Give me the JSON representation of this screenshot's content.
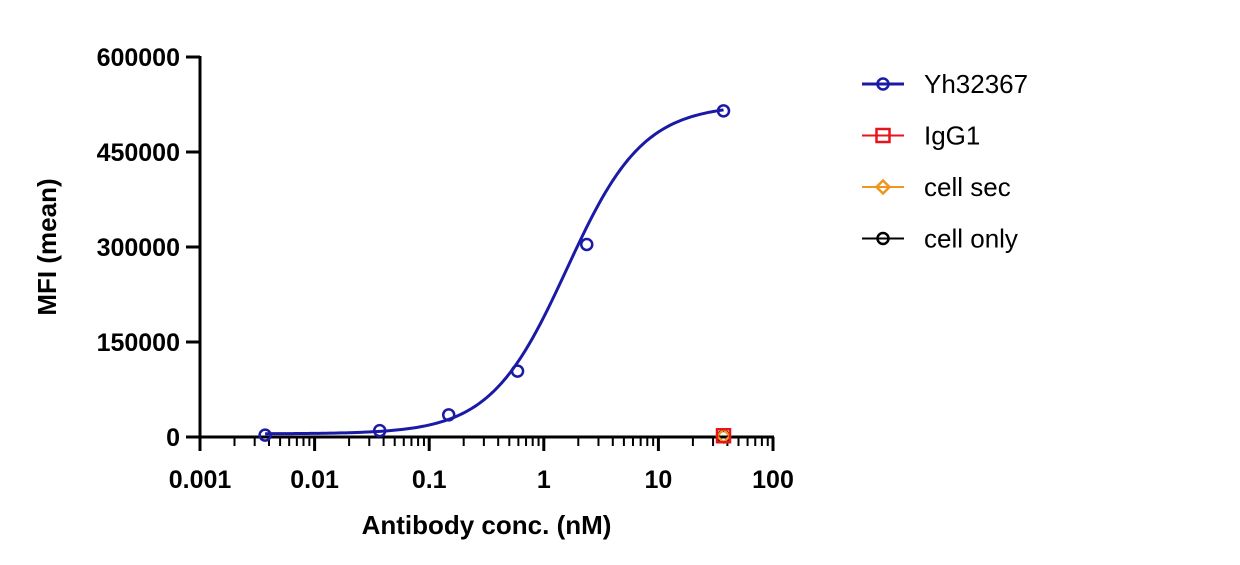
{
  "chart_data": {
    "type": "scatter",
    "xlabel": "Antibody conc. (nM)",
    "ylabel": "MFI (mean)",
    "xscale": "log",
    "xlim": [
      0.001,
      100
    ],
    "ylim": [
      0,
      600000
    ],
    "x_ticks": [
      0.001,
      0.01,
      0.1,
      1,
      10,
      100
    ],
    "x_tick_labels": [
      "0.001",
      "0.01",
      "0.1",
      "1",
      "10",
      "100"
    ],
    "y_ticks": [
      0,
      150000,
      300000,
      450000,
      600000
    ],
    "y_tick_labels": [
      "0",
      "150000",
      "300000",
      "450000",
      "600000"
    ],
    "legend_position": "right",
    "grid": false,
    "series": [
      {
        "name": "Yh32367",
        "color": "#1a1aa6",
        "marker": "circle",
        "fit_curve": true,
        "x": [
          0.0037,
          0.037,
          0.148,
          0.59,
          2.37,
          37
        ],
        "y": [
          3000,
          10000,
          35000,
          104000,
          304000,
          515000
        ]
      },
      {
        "name": "IgG1",
        "color": "#e8141b",
        "marker": "square",
        "fit_curve": false,
        "x": [
          37
        ],
        "y": [
          2000
        ]
      },
      {
        "name": "cell sec",
        "color": "#f0961e",
        "marker": "diamond",
        "fit_curve": false,
        "x": [
          37
        ],
        "y": [
          1500
        ]
      },
      {
        "name": "cell only",
        "color": "#000000",
        "marker": "circle",
        "fit_curve": false,
        "x": [
          37
        ],
        "y": [
          1000
        ]
      }
    ]
  }
}
